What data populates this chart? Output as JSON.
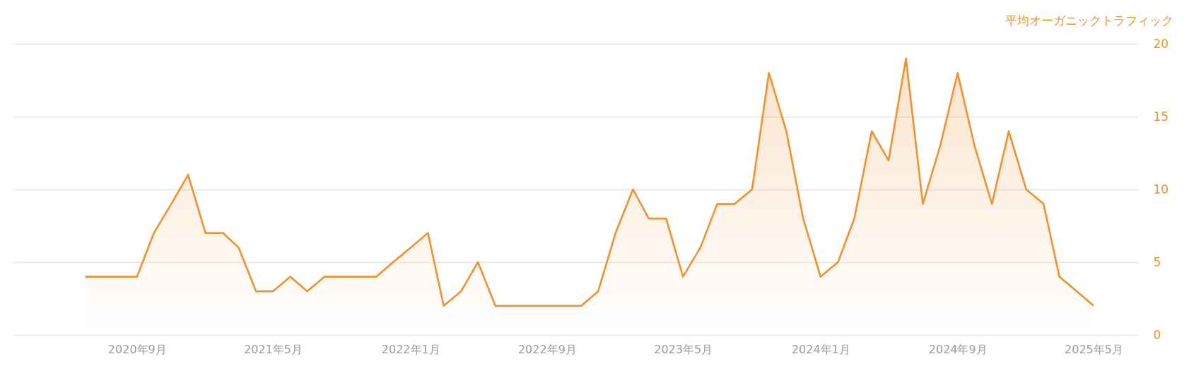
{
  "chart_data": {
    "type": "area",
    "ylabel": "平均オーガニックトラフィック",
    "x": [
      "2020-06",
      "2020-07",
      "2020-08",
      "2020-09",
      "2020-10",
      "2020-11",
      "2020-12",
      "2021-01",
      "2021-02",
      "2021-03",
      "2021-04",
      "2021-05",
      "2021-06",
      "2021-07",
      "2021-08",
      "2021-09",
      "2021-10",
      "2021-11",
      "2021-12",
      "2022-01",
      "2022-02",
      "2022-03",
      "2022-04",
      "2022-05",
      "2022-06",
      "2022-07",
      "2022-08",
      "2022-09",
      "2022-10",
      "2022-11",
      "2022-12",
      "2023-01",
      "2023-02",
      "2023-03",
      "2023-04",
      "2023-05",
      "2023-06",
      "2023-07",
      "2023-08",
      "2023-09",
      "2023-10",
      "2023-11",
      "2023-12",
      "2024-01",
      "2024-02",
      "2024-03",
      "2024-04",
      "2024-05",
      "2024-06",
      "2024-07",
      "2024-08",
      "2024-09",
      "2024-10",
      "2024-11",
      "2024-12",
      "2025-01",
      "2025-02",
      "2025-03",
      "2025-04",
      "2025-05"
    ],
    "series": [
      {
        "color": "#f0902e",
        "values": [
          4,
          4,
          4,
          4,
          7,
          9,
          11,
          7,
          7,
          6,
          3,
          3,
          4,
          3,
          4,
          4,
          4,
          4,
          5,
          6,
          7,
          2,
          3,
          5,
          2,
          2,
          2,
          2,
          2,
          2,
          3,
          7,
          10,
          8,
          8,
          4,
          6,
          9,
          9,
          10,
          18,
          14,
          8,
          4,
          5,
          8,
          14,
          12,
          19,
          9,
          13,
          18,
          13,
          9,
          14,
          10,
          9,
          4,
          3,
          2
        ]
      }
    ],
    "xlim": [
      "2020-01-25",
      "2025-07-18"
    ],
    "xticks": [
      {
        "value": "2020-09",
        "label": "2020年9月"
      },
      {
        "value": "2021-05",
        "label": "2021年5月"
      },
      {
        "value": "2022-01",
        "label": "2022年1月"
      },
      {
        "value": "2022-09",
        "label": "2022年9月"
      },
      {
        "value": "2023-05",
        "label": "2023年5月"
      },
      {
        "value": "2024-01",
        "label": "2024年1月"
      },
      {
        "value": "2024-09",
        "label": "2024年9月"
      },
      {
        "value": "2025-05",
        "label": "2025年5月"
      }
    ],
    "ylim": [
      0,
      20
    ],
    "yticks": [
      0,
      5,
      10,
      15,
      20
    ],
    "grid": "y"
  }
}
